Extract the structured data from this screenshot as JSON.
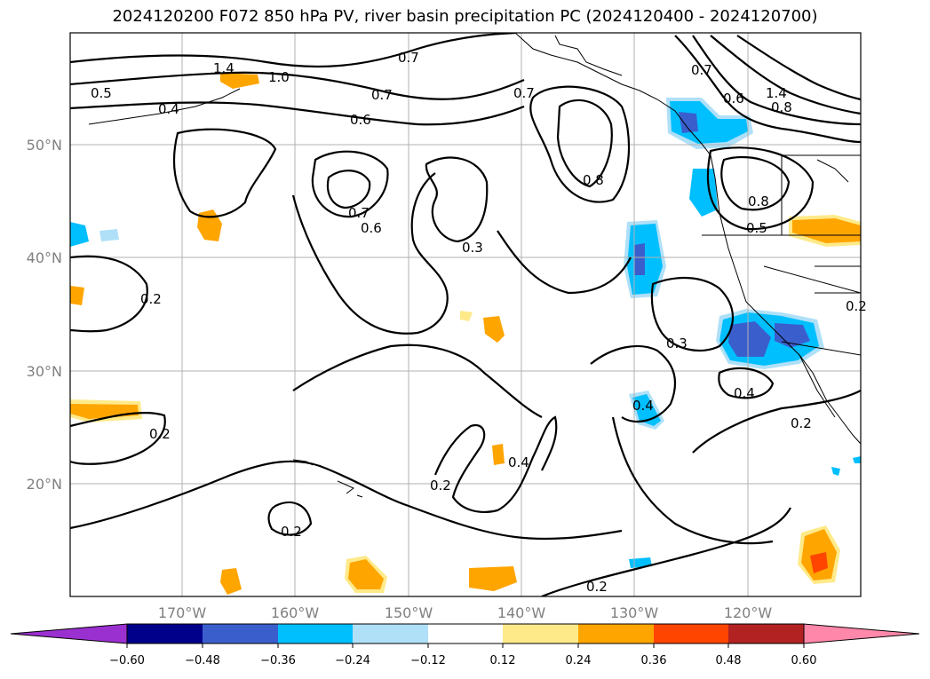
{
  "title": "2024120200 F072 850 hPa PV, river basin precipitation PC (2024120400 - 2024120700)",
  "lat_labels": [
    "50°N",
    "40°N",
    "30°N",
    "20°N"
  ],
  "lon_labels": [
    "170°W",
    "160°W",
    "150°W",
    "140°W",
    "130°W",
    "120°W"
  ],
  "colorbar": {
    "tick_labels": [
      "−0.60",
      "−0.48",
      "−0.36",
      "−0.24",
      "−0.12",
      "0.12",
      "0.24",
      "0.36",
      "0.48",
      "0.60"
    ],
    "colors": [
      "#9b30d0",
      "#00008b",
      "#3a5fcd",
      "#00bfff",
      "#afe0f8",
      "#ffffff",
      "#ffea8a",
      "#ffa500",
      "#ff4500",
      "#b22222",
      "#ff88aa"
    ]
  },
  "contour_labels": [
    "1.4",
    "1.0",
    "0.5",
    "0.4",
    "0.7",
    "0.6",
    "0.7",
    "0.7",
    "0.8",
    "0.7",
    "0.6",
    "0.3",
    "0.2",
    "0.2",
    "0.2",
    "0.2",
    "0.4",
    "0.4",
    "0.3",
    "0.4",
    "0.2",
    "0.8",
    "0.5",
    "0.7",
    "0.6",
    "1.4",
    "0.8",
    "0.2",
    "0.2"
  ]
}
